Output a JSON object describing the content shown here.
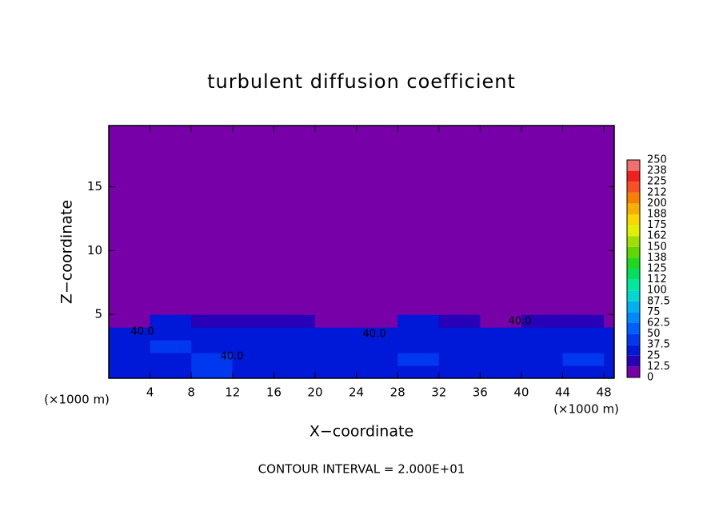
{
  "chart_data": {
    "type": "contour",
    "title": "turbulent diffusion coefficient",
    "x_label": "X−coordinate",
    "y_label": "Z−coordinate",
    "x_unit": "(×1000 m)",
    "footer": "CONTOUR INTERVAL = 2.000E+01",
    "xlim": [
      0,
      49
    ],
    "ylim": [
      0,
      19.8
    ],
    "xticks": [
      4,
      8,
      12,
      16,
      20,
      24,
      28,
      32,
      36,
      40,
      44,
      48
    ],
    "yticks": [
      5,
      10,
      15
    ],
    "x_edges": [
      0,
      4,
      8,
      12,
      16,
      20,
      24,
      28,
      32,
      36,
      40,
      44,
      48,
      49
    ],
    "y_edges": [
      0,
      1,
      2,
      3,
      4,
      5,
      19.8
    ],
    "z": [
      [
        30,
        35,
        40,
        30,
        35,
        30,
        25,
        30,
        35,
        30,
        35,
        30,
        30
      ],
      [
        35,
        30,
        45,
        35,
        30,
        35,
        30,
        40,
        30,
        35,
        30,
        40,
        30
      ],
      [
        30,
        40,
        35,
        30,
        35,
        30,
        30,
        35,
        30,
        30,
        35,
        30,
        25
      ],
      [
        35,
        30,
        30,
        35,
        30,
        30,
        25,
        30,
        35,
        30,
        30,
        35,
        30
      ],
      [
        10,
        25,
        20,
        15,
        20,
        5,
        5,
        25,
        20,
        10,
        20,
        15,
        5
      ],
      [
        0,
        0,
        0,
        0,
        0,
        0,
        0,
        0,
        0,
        0,
        0,
        0,
        0
      ]
    ],
    "levels": [
      0,
      12.5,
      25,
      37.5,
      50,
      62.5,
      75,
      87.5,
      100,
      {
        "value": 112.5,
        "label": "112"
      },
      125,
      {
        "value": 137.5,
        "label": "138"
      },
      150,
      {
        "value": 162.5,
        "label": "162"
      },
      175,
      {
        "value": 187.5,
        "label": "188"
      },
      200,
      {
        "value": 212.5,
        "label": "212"
      },
      225,
      {
        "value": 237.5,
        "label": "238"
      },
      250
    ],
    "colors": [
      "#7800a8",
      "#2800b8",
      "#0018d8",
      "#0038f0",
      "#0060ff",
      "#0088ff",
      "#00b0f0",
      "#00d8d0",
      "#00e8a0",
      "#00e060",
      "#20d820",
      "#60d800",
      "#a0e000",
      "#e0f000",
      "#f8d800",
      "#f8b000",
      "#f88000",
      "#f85020",
      "#f02020",
      "#f07070"
    ],
    "contour_labels": [
      {
        "value": 40,
        "label": "40.0"
      },
      {
        "value": 40,
        "label": "40.0"
      },
      {
        "value": 40,
        "label": "40.0"
      },
      {
        "value": 40,
        "label": "40.0"
      }
    ]
  }
}
